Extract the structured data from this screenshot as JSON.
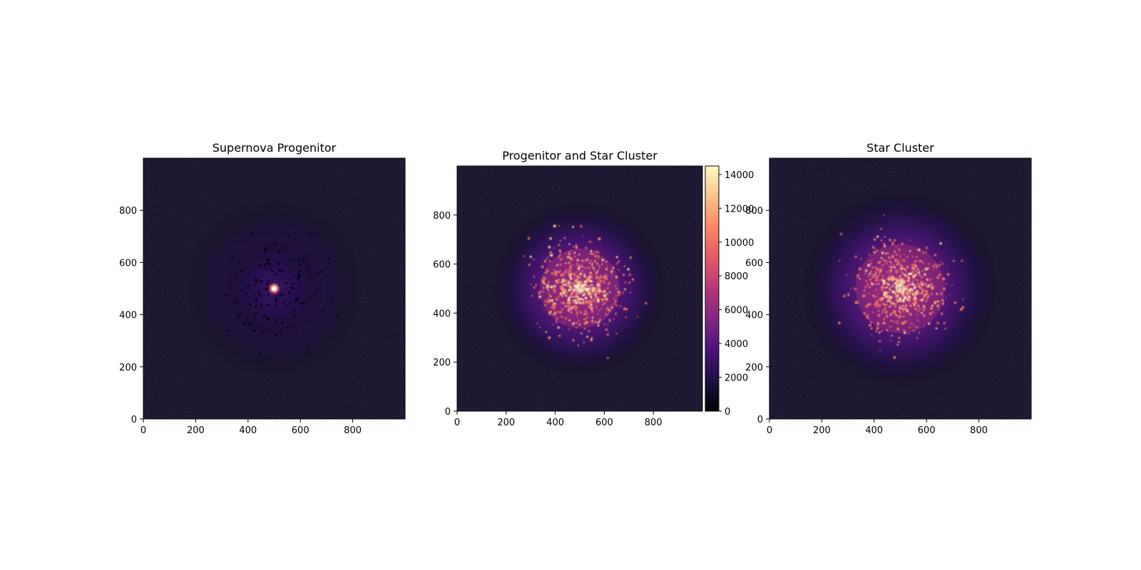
{
  "figure": {
    "colormap": "magma",
    "colormap_stops": [
      "#000004",
      "#1c1044",
      "#4f127b",
      "#812581",
      "#b5367a",
      "#e55964",
      "#fb8761",
      "#fec287",
      "#fcfdbf"
    ]
  },
  "chart_data": [
    {
      "type": "heatmap",
      "title": "Supernova Progenitor",
      "xlabel": "",
      "ylabel": "",
      "xlim": [
        0,
        1000
      ],
      "ylim": [
        0,
        1000
      ],
      "x_ticks": [
        0,
        200,
        400,
        600,
        800
      ],
      "y_ticks": [
        0,
        200,
        400,
        600,
        800
      ],
      "x_tick_labels": [
        "0",
        "200",
        "400",
        "600",
        "800"
      ],
      "y_tick_labels": [
        "0",
        "200",
        "400",
        "600",
        "800"
      ],
      "content": "bright point source at center over a faint diffuse halo",
      "source_center": [
        500,
        500
      ],
      "colorbar": null
    },
    {
      "type": "heatmap",
      "title": "Progenitor and Star Cluster",
      "xlabel": "",
      "ylabel": "",
      "xlim": [
        0,
        1000
      ],
      "ylim": [
        0,
        1000
      ],
      "x_ticks": [
        0,
        200,
        400,
        600,
        800
      ],
      "y_ticks": [
        0,
        200,
        400,
        600,
        800
      ],
      "x_tick_labels": [
        "0",
        "200",
        "400",
        "600",
        "800"
      ],
      "y_tick_labels": [
        "0",
        "200",
        "400",
        "600",
        "800"
      ],
      "content": "star cluster centered near (500, 500) with diffuse glow",
      "colorbar": {
        "vmin": 0,
        "vmax": 14500,
        "ticks": [
          0,
          2000,
          4000,
          6000,
          8000,
          10000,
          12000,
          14000
        ],
        "tick_labels": [
          "0",
          "2000",
          "4000",
          "6000",
          "8000",
          "10000",
          "12000",
          "14000"
        ]
      }
    },
    {
      "type": "heatmap",
      "title": "Star Cluster",
      "xlabel": "",
      "ylabel": "",
      "xlim": [
        0,
        1000
      ],
      "ylim": [
        0,
        1000
      ],
      "x_ticks": [
        0,
        200,
        400,
        600,
        800
      ],
      "y_ticks": [
        0,
        200,
        400,
        600,
        800
      ],
      "x_tick_labels": [
        "0",
        "200",
        "400",
        "600",
        "800"
      ],
      "y_tick_labels": [
        "0",
        "200",
        "400",
        "600",
        "800"
      ],
      "content": "star cluster centered near (500, 500) with diffuse glow",
      "colorbar": null
    }
  ]
}
